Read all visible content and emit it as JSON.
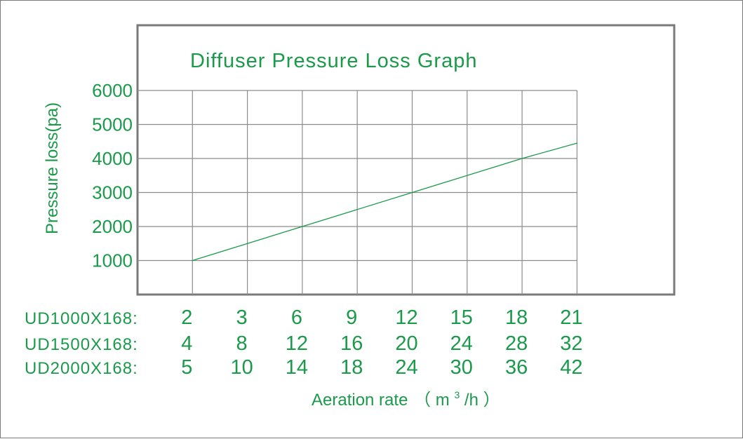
{
  "chart_data": {
    "type": "line",
    "title": "Diffuser Pressure Loss Graph",
    "ylabel": "Pressure loss(pa)",
    "xlabel": "Aeration rate",
    "xlabel_unit_open": "（",
    "xlabel_unit": "m",
    "xlabel_unit_sup": "3",
    "xlabel_unit_rest": "/h",
    "xlabel_unit_close": "）",
    "y_ticks": [
      "6000",
      "5000",
      "4000",
      "3000",
      "2000",
      "1000"
    ],
    "ylim": [
      0,
      6000
    ],
    "grid": true,
    "x_rows": [
      {
        "model": "UD1000X168:",
        "values": [
          "2",
          "3",
          "6",
          "9",
          "12",
          "15",
          "18",
          "21"
        ]
      },
      {
        "model": "UD1500X168:",
        "values": [
          "4",
          "8",
          "12",
          "16",
          "20",
          "24",
          "28",
          "32"
        ]
      },
      {
        "model": "UD2000X168:",
        "values": [
          "5",
          "10",
          "14",
          "18",
          "24",
          "30",
          "36",
          "42"
        ]
      }
    ],
    "series": [
      {
        "x_index": [
          1,
          3,
          5,
          7,
          8
        ],
        "values": [
          1000,
          2000,
          3000,
          4000,
          4450
        ]
      }
    ],
    "colors": {
      "text": "#1a9a4a",
      "line": "#1a9a4a",
      "grid": "#8c8c8c",
      "frame": "#7a7a7a"
    }
  }
}
